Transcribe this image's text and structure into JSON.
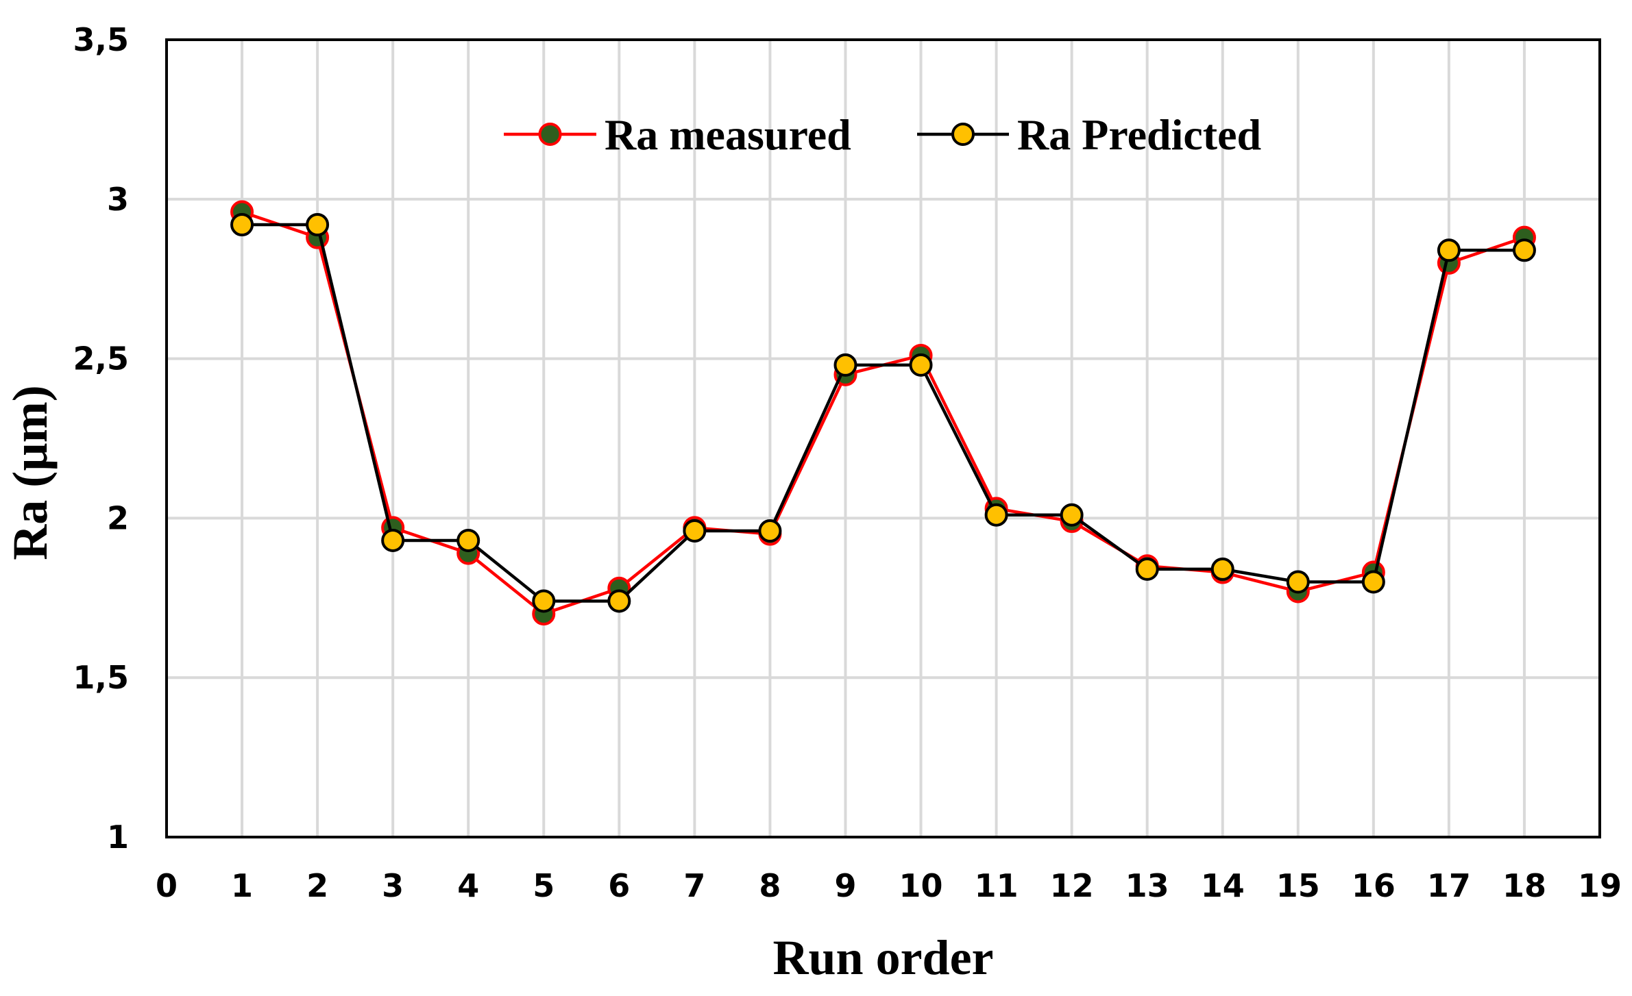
{
  "chart_data": {
    "type": "line",
    "title": "",
    "xlabel": "Run order",
    "ylabel": "Ra (µm)",
    "xlim": [
      0,
      19
    ],
    "ylim": [
      1,
      3.5
    ],
    "x_ticks": [
      0,
      1,
      2,
      3,
      4,
      5,
      6,
      7,
      8,
      9,
      10,
      11,
      12,
      13,
      14,
      15,
      16,
      17,
      18,
      19
    ],
    "y_ticks": [
      {
        "value": 1,
        "label": "1"
      },
      {
        "value": 1.5,
        "label": "1,5"
      },
      {
        "value": 2,
        "label": "2"
      },
      {
        "value": 2.5,
        "label": "2,5"
      },
      {
        "value": 3,
        "label": "3"
      },
      {
        "value": 3.5,
        "label": "3,5"
      }
    ],
    "grid": true,
    "legend_position": "top-center",
    "x": [
      1,
      2,
      3,
      4,
      5,
      6,
      7,
      8,
      9,
      10,
      11,
      12,
      13,
      14,
      15,
      16,
      17,
      18
    ],
    "series": [
      {
        "name": "Ra measured",
        "line_color": "#ff0000",
        "marker_fill": "#2e5e1e",
        "marker_stroke": "#ff0000",
        "values": [
          2.96,
          2.88,
          1.97,
          1.89,
          1.7,
          1.78,
          1.97,
          1.95,
          2.45,
          2.51,
          2.03,
          1.99,
          1.85,
          1.83,
          1.77,
          1.83,
          2.8,
          2.88
        ]
      },
      {
        "name": "Ra Predicted",
        "line_color": "#000000",
        "marker_fill": "#ffc000",
        "marker_stroke": "#000000",
        "values": [
          2.92,
          2.92,
          1.93,
          1.93,
          1.74,
          1.74,
          1.96,
          1.96,
          2.48,
          2.48,
          2.01,
          2.01,
          1.84,
          1.84,
          1.8,
          1.8,
          2.84,
          2.84
        ]
      }
    ]
  }
}
